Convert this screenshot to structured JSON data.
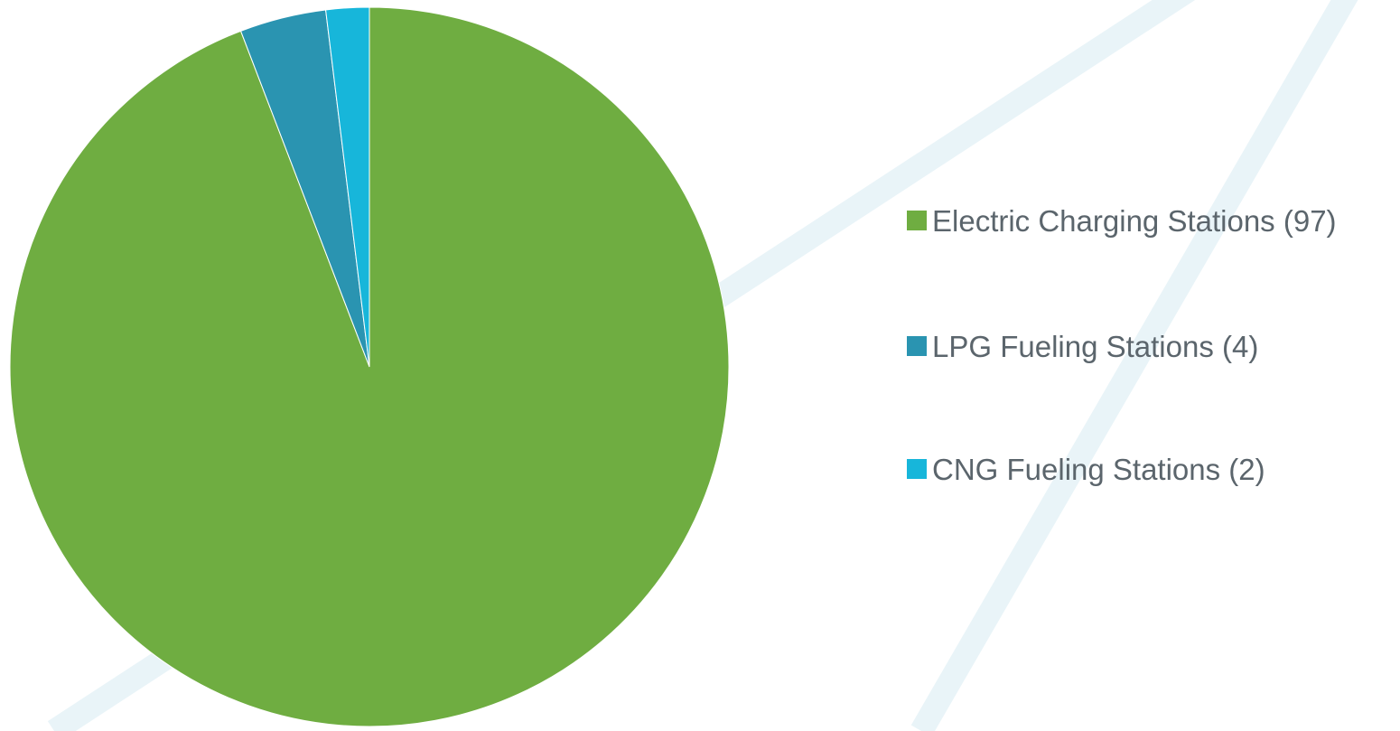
{
  "chart_data": {
    "type": "pie",
    "categories": [
      "Electric Charging Stations (97)",
      "LPG Fueling Stations (4)",
      "CNG Fueling Stations (2)"
    ],
    "values": [
      97,
      4,
      2
    ],
    "colors": [
      "#6fad41",
      "#2a94b1",
      "#17b6da"
    ],
    "legend": "right"
  }
}
